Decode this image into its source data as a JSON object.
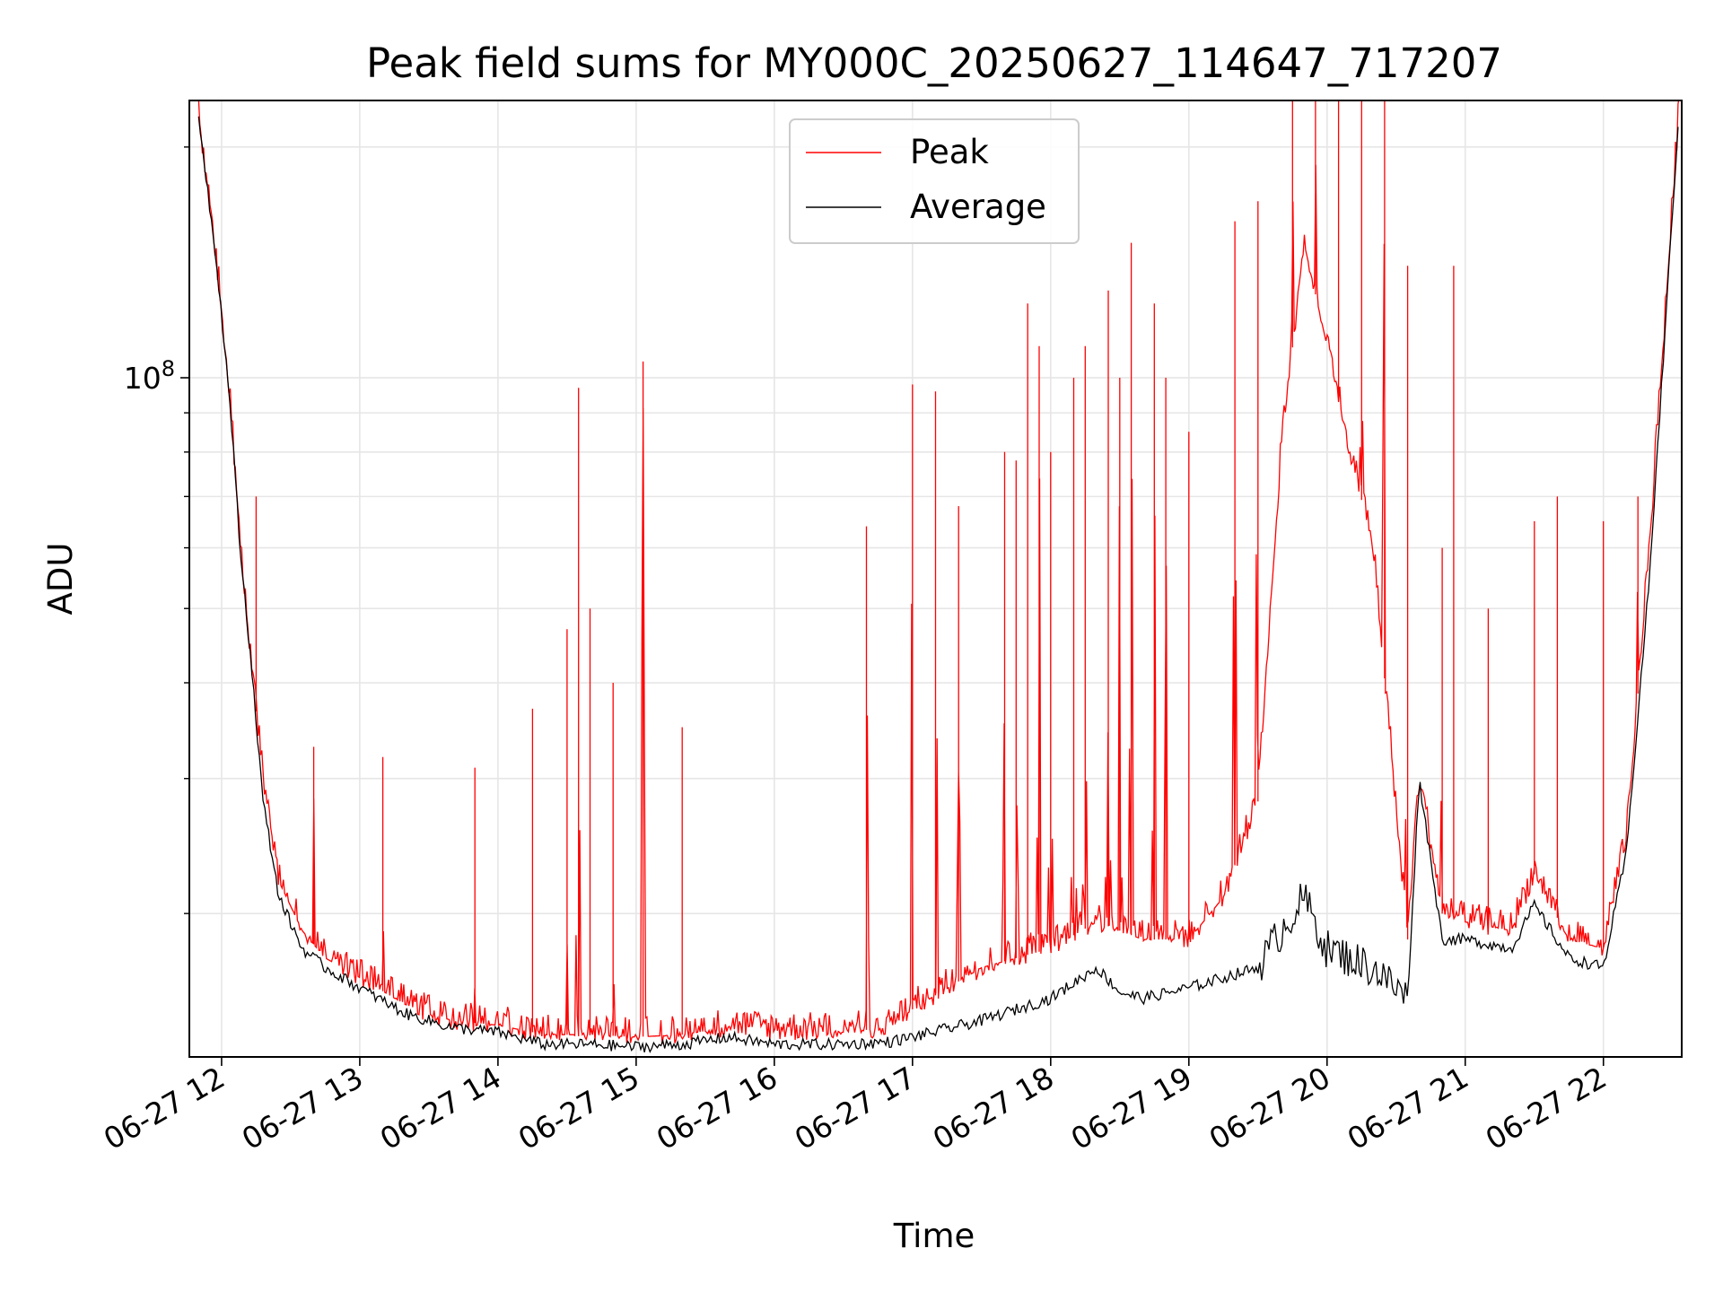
{
  "chart_data": {
    "type": "line",
    "title": "Peak field sums for MY000C_20250627_114647_717207",
    "xlabel": "Time",
    "ylabel": "ADU",
    "y_scale": "log",
    "ylim": [
      13000000,
      230000000
    ],
    "xlim": [
      "06-27 11:46",
      "06-27 22:34"
    ],
    "grid": true,
    "legend": "upper center",
    "x_ticks": [
      "06-27 12",
      "06-27 13",
      "06-27 14",
      "06-27 15",
      "06-27 16",
      "06-27 17",
      "06-27 18",
      "06-27 19",
      "06-27 20",
      "06-27 21",
      "06-27 22"
    ],
    "y_major_tick_labels": [
      {
        "base": "10",
        "exponent": "8"
      }
    ],
    "y_major_tick_values": [
      100000000
    ],
    "y_minor_tick_values": [
      20000000,
      30000000,
      40000000,
      50000000,
      60000000,
      70000000,
      80000000,
      90000000,
      200000000
    ],
    "colors": {
      "peak": "#ff0000",
      "average": "#000000"
    },
    "series": [
      {
        "name": "Peak",
        "color": "#ff0000",
        "baseline": [
          [
            "06-27 11:50",
            220000000
          ],
          [
            "06-27 11:58",
            140000000
          ],
          [
            "06-27 12:04",
            90000000
          ],
          [
            "06-27 12:08",
            60000000
          ],
          [
            "06-27 12:13",
            42000000
          ],
          [
            "06-27 12:18",
            30000000
          ],
          [
            "06-27 12:25",
            22000000
          ],
          [
            "06-27 12:35",
            19000000
          ],
          [
            "06-27 12:45",
            17500000
          ],
          [
            "06-27 13:00",
            16500000
          ],
          [
            "06-27 13:20",
            15200000
          ],
          [
            "06-27 13:40",
            14500000
          ],
          [
            "06-27 14:00",
            14300000
          ],
          [
            "06-27 14:20",
            13900000
          ],
          [
            "06-27 14:40",
            13900000
          ],
          [
            "06-27 15:00",
            13800000
          ],
          [
            "06-27 15:20",
            13900000
          ],
          [
            "06-27 15:40",
            14200000
          ],
          [
            "06-27 16:00",
            14000000
          ],
          [
            "06-27 16:30",
            14000000
          ],
          [
            "06-27 16:50",
            14200000
          ],
          [
            "06-27 17:00",
            15000000
          ],
          [
            "06-27 17:30",
            17000000
          ],
          [
            "06-27 18:00",
            18000000
          ],
          [
            "06-27 18:20",
            19500000
          ],
          [
            "06-27 18:40",
            18500000
          ],
          [
            "06-27 19:00",
            18500000
          ],
          [
            "06-27 19:15",
            21000000
          ],
          [
            "06-27 19:30",
            28000000
          ],
          [
            "06-27 19:40",
            80000000
          ],
          [
            "06-27 19:50",
            150000000
          ],
          [
            "06-27 20:00",
            110000000
          ],
          [
            "06-27 20:10",
            80000000
          ],
          [
            "06-27 20:20",
            60000000
          ],
          [
            "06-27 20:35",
            18500000
          ],
          [
            "06-27 20:40",
            30000000
          ],
          [
            "06-27 20:50",
            20000000
          ],
          [
            "06-27 21:00",
            19500000
          ],
          [
            "06-27 21:20",
            19000000
          ],
          [
            "06-27 21:30",
            22500000
          ],
          [
            "06-27 21:45",
            18500000
          ],
          [
            "06-27 22:00",
            18000000
          ],
          [
            "06-27 22:10",
            25000000
          ],
          [
            "06-27 22:20",
            60000000
          ],
          [
            "06-27 22:33",
            228000000
          ]
        ],
        "spikes": [
          [
            "06-27 12:15",
            70000000
          ],
          [
            "06-27 12:40",
            33000000
          ],
          [
            "06-27 13:10",
            32000000
          ],
          [
            "06-27 13:50",
            31000000
          ],
          [
            "06-27 14:15",
            37000000
          ],
          [
            "06-27 14:30",
            47000000
          ],
          [
            "06-27 14:35",
            97000000
          ],
          [
            "06-27 14:40",
            50000000
          ],
          [
            "06-27 14:50",
            40000000
          ],
          [
            "06-27 15:03",
            105000000
          ],
          [
            "06-27 15:20",
            35000000
          ],
          [
            "06-27 16:40",
            64000000
          ],
          [
            "06-27 17:00",
            98000000
          ],
          [
            "06-27 17:10",
            96000000
          ],
          [
            "06-27 17:20",
            68000000
          ],
          [
            "06-27 17:40",
            80000000
          ],
          [
            "06-27 17:45",
            78000000
          ],
          [
            "06-27 17:50",
            125000000
          ],
          [
            "06-27 17:55",
            110000000
          ],
          [
            "06-27 18:00",
            80000000
          ],
          [
            "06-27 18:10",
            100000000
          ],
          [
            "06-27 18:15",
            110000000
          ],
          [
            "06-27 18:25",
            130000000
          ],
          [
            "06-27 18:30",
            100000000
          ],
          [
            "06-27 18:35",
            150000000
          ],
          [
            "06-27 18:45",
            125000000
          ],
          [
            "06-27 18:50",
            100000000
          ],
          [
            "06-27 19:00",
            85000000
          ],
          [
            "06-27 19:20",
            160000000
          ],
          [
            "06-27 19:30",
            170000000
          ],
          [
            "06-27 19:45",
            230000000
          ],
          [
            "06-27 19:55",
            230000000
          ],
          [
            "06-27 20:05",
            230000000
          ],
          [
            "06-27 20:15",
            230000000
          ],
          [
            "06-27 20:25",
            230000000
          ],
          [
            "06-27 20:35",
            140000000
          ],
          [
            "06-27 20:50",
            60000000
          ],
          [
            "06-27 20:55",
            140000000
          ],
          [
            "06-27 21:10",
            50000000
          ],
          [
            "06-27 21:30",
            65000000
          ],
          [
            "06-27 21:40",
            70000000
          ],
          [
            "06-27 22:00",
            65000000
          ],
          [
            "06-27 22:15",
            70000000
          ]
        ]
      },
      {
        "name": "Average",
        "color": "#000000",
        "baseline": [
          [
            "06-27 11:50",
            220000000
          ],
          [
            "06-27 11:58",
            140000000
          ],
          [
            "06-27 12:04",
            90000000
          ],
          [
            "06-27 12:08",
            60000000
          ],
          [
            "06-27 12:13",
            42000000
          ],
          [
            "06-27 12:18",
            28000000
          ],
          [
            "06-27 12:25",
            21000000
          ],
          [
            "06-27 12:35",
            18000000
          ],
          [
            "06-27 12:45",
            17000000
          ],
          [
            "06-27 13:00",
            16000000
          ],
          [
            "06-27 13:20",
            14800000
          ],
          [
            "06-27 13:40",
            14200000
          ],
          [
            "06-27 14:00",
            14000000
          ],
          [
            "06-27 14:20",
            13500000
          ],
          [
            "06-27 14:40",
            13500000
          ],
          [
            "06-27 15:00",
            13400000
          ],
          [
            "06-27 15:20",
            13500000
          ],
          [
            "06-27 15:40",
            13800000
          ],
          [
            "06-27 16:00",
            13500000
          ],
          [
            "06-27 16:30",
            13500000
          ],
          [
            "06-27 16:50",
            13600000
          ],
          [
            "06-27 17:00",
            13800000
          ],
          [
            "06-27 17:30",
            14500000
          ],
          [
            "06-27 18:00",
            15500000
          ],
          [
            "06-27 18:20",
            17000000
          ],
          [
            "06-27 18:30",
            15800000
          ],
          [
            "06-27 18:40",
            15500000
          ],
          [
            "06-27 19:00",
            16000000
          ],
          [
            "06-27 19:15",
            16500000
          ],
          [
            "06-27 19:30",
            17000000
          ],
          [
            "06-27 19:40",
            19000000
          ],
          [
            "06-27 19:50",
            21000000
          ],
          [
            "06-27 20:00",
            18000000
          ],
          [
            "06-27 20:10",
            17500000
          ],
          [
            "06-27 20:20",
            17000000
          ],
          [
            "06-27 20:35",
            15500000
          ],
          [
            "06-27 20:40",
            30000000
          ],
          [
            "06-27 20:50",
            18500000
          ],
          [
            "06-27 21:00",
            18500000
          ],
          [
            "06-27 21:20",
            18000000
          ],
          [
            "06-27 21:30",
            20500000
          ],
          [
            "06-27 21:45",
            17500000
          ],
          [
            "06-27 22:00",
            17000000
          ],
          [
            "06-27 22:10",
            24000000
          ],
          [
            "06-27 22:20",
            55000000
          ],
          [
            "06-27 22:33",
            228000000
          ]
        ]
      }
    ]
  }
}
